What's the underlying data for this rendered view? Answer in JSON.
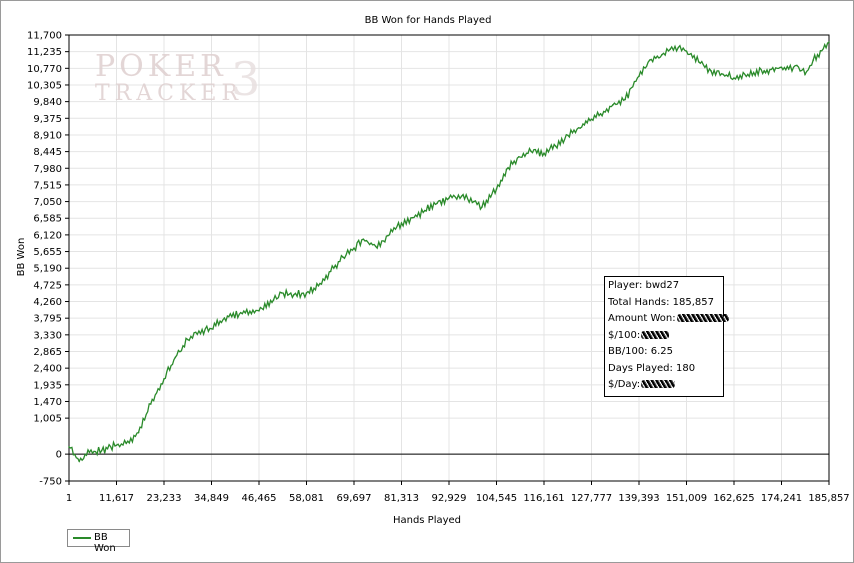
{
  "chart_data": {
    "type": "line",
    "title": "BB Won for Hands Played",
    "xlabel": "Hands Played",
    "ylabel": "BB Won",
    "xlim": [
      1,
      185857
    ],
    "ylim": [
      -750,
      11700
    ],
    "x_ticks": [
      "1",
      "11,617",
      "23,233",
      "34,849",
      "46,465",
      "58,081",
      "69,697",
      "81,313",
      "92,929",
      "104,545",
      "116,161",
      "127,777",
      "139,393",
      "151,009",
      "162,625",
      "174,241",
      "185,857"
    ],
    "y_ticks": [
      "-750",
      "0",
      "1,005",
      "1,470",
      "1,935",
      "2,400",
      "2,865",
      "3,330",
      "3,795",
      "4,260",
      "4,725",
      "5,190",
      "5,655",
      "6,120",
      "6,585",
      "7,050",
      "7,515",
      "7,980",
      "8,445",
      "8,910",
      "9,375",
      "9,840",
      "10,305",
      "10,770",
      "11,235",
      "11,700"
    ],
    "grid": true,
    "legend_position": "bottom-left",
    "series": [
      {
        "name": "BB Won",
        "color": "#2a8a2a",
        "x": [
          1,
          2500,
          5000,
          8000,
          11617,
          14000,
          17000,
          20000,
          23233,
          26000,
          29000,
          31000,
          34849,
          38000,
          42000,
          46465,
          50000,
          52000,
          55000,
          58081,
          61000,
          64000,
          67000,
          69697,
          72000,
          75000,
          78000,
          81313,
          84000,
          87000,
          90000,
          92929,
          96000,
          99000,
          101000,
          104545,
          107000,
          110000,
          113000,
          116161,
          119000,
          122000,
          125000,
          127777,
          130000,
          133000,
          136000,
          139393,
          142000,
          145000,
          147000,
          149000,
          151009,
          154000,
          157000,
          160000,
          162625,
          166000,
          170000,
          174241,
          176000,
          178000,
          180000,
          182000,
          185857
        ],
        "y": [
          200,
          -200,
          50,
          100,
          250,
          300,
          600,
          1400,
          2100,
          2700,
          3200,
          3400,
          3500,
          3800,
          3950,
          4000,
          4300,
          4500,
          4450,
          4500,
          4700,
          5100,
          5500,
          5750,
          6000,
          5800,
          6100,
          6450,
          6600,
          6800,
          7000,
          7150,
          7200,
          7050,
          6900,
          7400,
          7950,
          8300,
          8450,
          8400,
          8600,
          8900,
          9100,
          9350,
          9500,
          9750,
          9900,
          10550,
          11000,
          11150,
          11300,
          11350,
          11250,
          10950,
          10700,
          10600,
          10500,
          10600,
          10700,
          10800,
          10750,
          10850,
          10600,
          11000,
          11500
        ]
      }
    ]
  },
  "stats_box": {
    "player": "Player: bwd27",
    "total_hands": "Total Hands: 185,857",
    "amount_won": "Amount Won:",
    "per100": "$/100:",
    "bb100": "BB/100: 6.25",
    "days": "Days Played: 180",
    "per_day": "$/Day:"
  },
  "watermark": {
    "line1": "POKER",
    "line2": "TRACKER",
    "mark": "3"
  }
}
